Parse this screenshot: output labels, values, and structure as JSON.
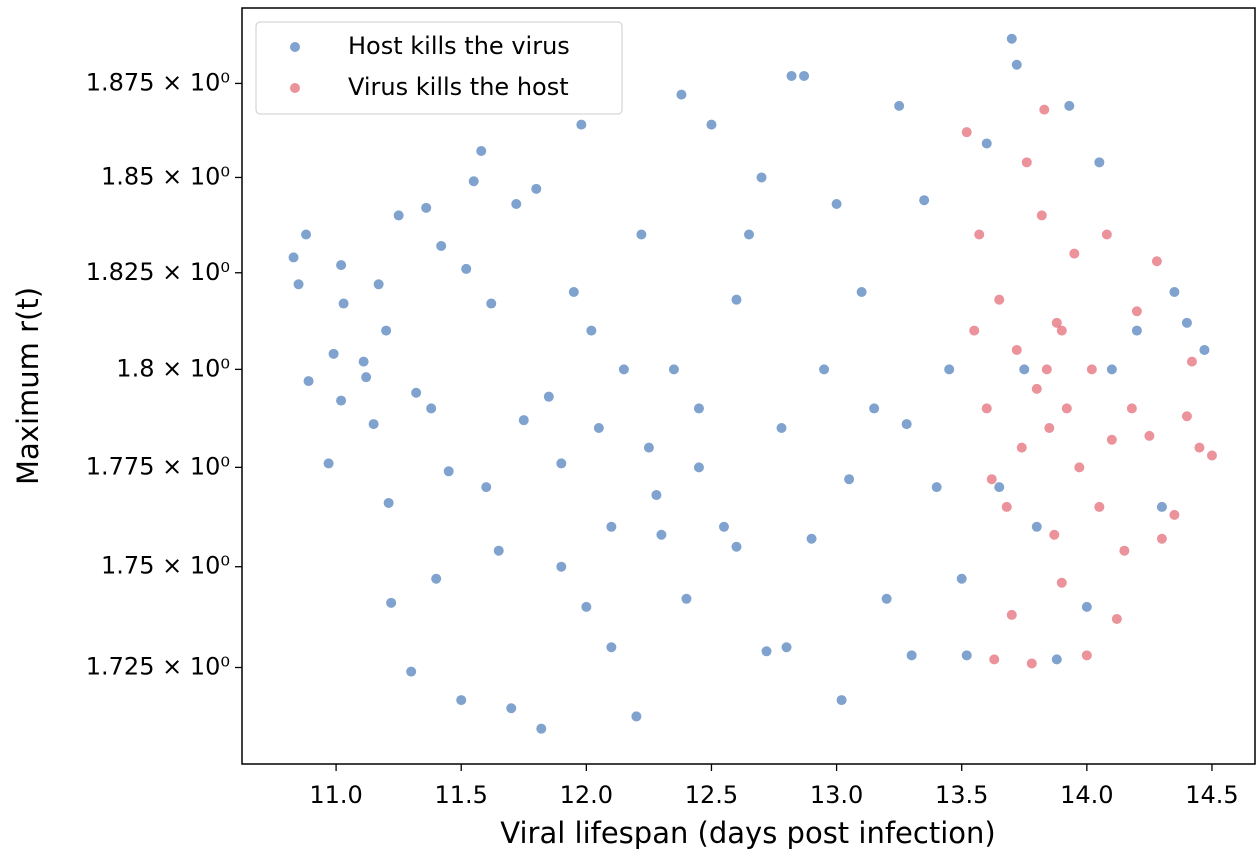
{
  "chart_data": {
    "type": "scatter",
    "xlabel": "Viral lifespan (days post infection)",
    "ylabel": "Maximum r(t)",
    "xlim": [
      10.624,
      14.672
    ],
    "ylim": [
      1.7014,
      1.8953
    ],
    "log_y": true,
    "legend": "upper left",
    "xticks": [
      {
        "value": 11,
        "label": "11.0"
      },
      11.5,
      {
        "value": 12,
        "label": "12.0"
      },
      12.5,
      {
        "value": 13,
        "label": "13.0"
      },
      13.5,
      {
        "value": 14,
        "label": "14.0"
      },
      14.5
    ],
    "yticks": [
      {
        "value": 1.725,
        "label": "1.725 × 10⁰"
      },
      {
        "value": 1.75,
        "label": "1.75 × 10⁰"
      },
      {
        "value": 1.775,
        "label": "1.775 × 10⁰"
      },
      {
        "value": 1.8,
        "label": "1.8 × 10⁰"
      },
      {
        "value": 1.825,
        "label": "1.825 × 10⁰"
      },
      {
        "value": 1.85,
        "label": "1.85 × 10⁰"
      },
      {
        "value": 1.875,
        "label": "1.875 × 10⁰"
      }
    ],
    "series": [
      {
        "name": "Host kills the virus",
        "color": "#3b70b3",
        "x": [
          10.83,
          10.85,
          10.88,
          10.89,
          10.97,
          10.99,
          11.02,
          11.03,
          11.02,
          11.11,
          11.12,
          11.15,
          11.17,
          11.2,
          11.21,
          11.22,
          11.25,
          11.3,
          11.32,
          11.36,
          11.38,
          11.4,
          11.42,
          11.45,
          11.5,
          11.52,
          11.55,
          11.58,
          11.6,
          11.62,
          11.65,
          11.7,
          11.72,
          11.75,
          11.8,
          11.82,
          11.85,
          11.9,
          11.95,
          11.98,
          12.0,
          12.02,
          12.05,
          12.1,
          12.15,
          12.2,
          12.22,
          12.28,
          12.3,
          12.35,
          12.38,
          12.4,
          12.45,
          12.5,
          12.55,
          12.6,
          12.65,
          12.7,
          12.72,
          12.78,
          12.82,
          12.87,
          12.9,
          12.95,
          13.0,
          13.02,
          13.05,
          13.1,
          13.15,
          13.2,
          13.25,
          13.28,
          13.3,
          13.35,
          13.4,
          13.45,
          13.5,
          13.52,
          13.6,
          13.65,
          13.7,
          13.72,
          13.75,
          13.8,
          13.88,
          13.93,
          14.0,
          14.05,
          14.1,
          14.2,
          14.3,
          14.35,
          14.4,
          14.47,
          12.1,
          12.25,
          12.45,
          12.6,
          11.9,
          12.8
        ],
        "values": [
          1.829,
          1.822,
          1.835,
          1.797,
          1.776,
          1.804,
          1.827,
          1.817,
          1.792,
          1.802,
          1.798,
          1.786,
          1.822,
          1.81,
          1.766,
          1.741,
          1.84,
          1.724,
          1.794,
          1.842,
          1.79,
          1.747,
          1.832,
          1.774,
          1.717,
          1.826,
          1.849,
          1.857,
          1.77,
          1.817,
          1.754,
          1.715,
          1.843,
          1.787,
          1.847,
          1.71,
          1.793,
          1.776,
          1.82,
          1.864,
          1.74,
          1.81,
          1.785,
          1.73,
          1.8,
          1.713,
          1.835,
          1.768,
          1.758,
          1.8,
          1.872,
          1.742,
          1.79,
          1.864,
          1.76,
          1.818,
          1.835,
          1.85,
          1.729,
          1.785,
          1.877,
          1.877,
          1.757,
          1.8,
          1.843,
          1.717,
          1.772,
          1.82,
          1.79,
          1.742,
          1.869,
          1.786,
          1.728,
          1.844,
          1.77,
          1.8,
          1.747,
          1.728,
          1.859,
          1.77,
          1.887,
          1.88,
          1.8,
          1.76,
          1.727,
          1.869,
          1.74,
          1.854,
          1.8,
          1.81,
          1.765,
          1.82,
          1.812,
          1.805,
          1.76,
          1.78,
          1.775,
          1.755,
          1.75,
          1.73
        ]
      },
      {
        "name": "Virus kills the host",
        "color": "#e05866",
        "x": [
          13.52,
          13.55,
          13.57,
          13.6,
          13.63,
          13.65,
          13.68,
          13.7,
          13.72,
          13.74,
          13.76,
          13.78,
          13.8,
          13.82,
          13.83,
          13.85,
          13.87,
          13.88,
          13.9,
          13.92,
          13.95,
          13.97,
          14.0,
          14.02,
          14.05,
          14.08,
          14.1,
          14.12,
          14.15,
          14.18,
          14.2,
          14.25,
          14.28,
          14.3,
          14.35,
          14.4,
          14.42,
          14.45,
          14.5,
          13.62,
          13.84,
          13.9
        ],
        "values": [
          1.862,
          1.81,
          1.835,
          1.79,
          1.727,
          1.818,
          1.765,
          1.738,
          1.805,
          1.78,
          1.854,
          1.726,
          1.795,
          1.84,
          1.868,
          1.785,
          1.758,
          1.812,
          1.746,
          1.79,
          1.83,
          1.775,
          1.728,
          1.8,
          1.765,
          1.835,
          1.782,
          1.737,
          1.754,
          1.79,
          1.815,
          1.783,
          1.828,
          1.757,
          1.763,
          1.788,
          1.802,
          1.78,
          1.778,
          1.772,
          1.8,
          1.81
        ]
      }
    ]
  }
}
